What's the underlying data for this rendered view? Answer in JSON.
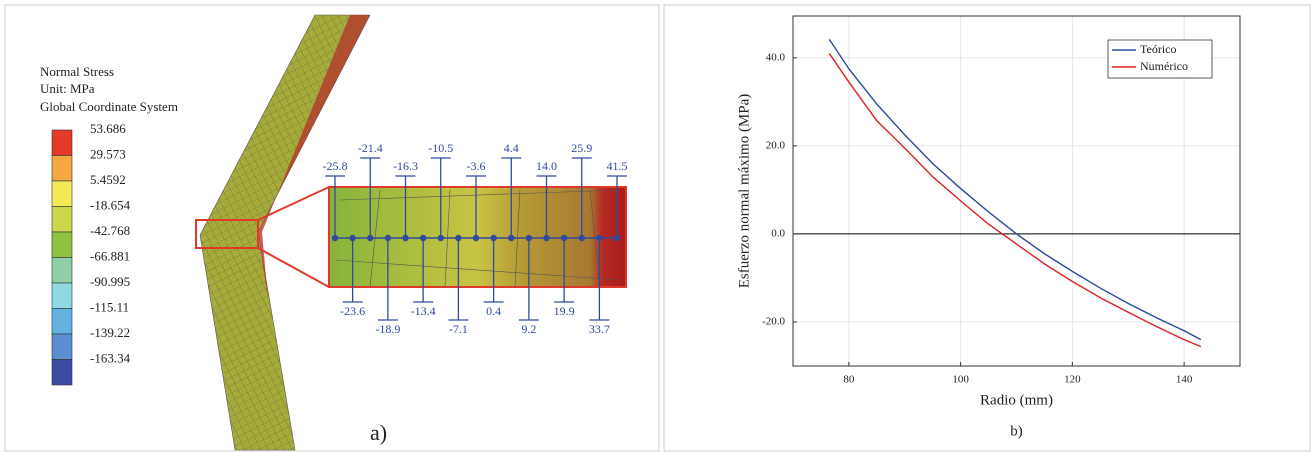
{
  "panel_a": {
    "legend_title": [
      "Normal Stress",
      "Unit: MPa",
      "Global Coordinate System"
    ],
    "legend": [
      {
        "label": "53.686",
        "color": "#e5392b"
      },
      {
        "label": "29.573",
        "color": "#f3a940"
      },
      {
        "label": "5.4592",
        "color": "#f3ea55"
      },
      {
        "label": "-18.654",
        "color": "#cbd84a"
      },
      {
        "label": "-42.768",
        "color": "#8fc23f"
      },
      {
        "label": "-66.881",
        "color": "#8fd0a6"
      },
      {
        "label": "-90.995",
        "color": "#92d8e3"
      },
      {
        "label": "-115.11",
        "color": "#62b3e2"
      },
      {
        "label": "-139.22",
        "color": "#5b8fd2"
      },
      {
        "label": "-163.34",
        "color": "#3a4da0"
      }
    ],
    "stress_labels": [
      "-25.8",
      "-23.6",
      "-21.4",
      "-18.9",
      "-16.3",
      "-13.4",
      "-10.5",
      "-7.1",
      "-3.6",
      "0.4",
      "4.4",
      "9.2",
      "14.0",
      "19.9",
      "25.9",
      "33.7",
      "41.5"
    ],
    "label": "a)"
  },
  "chart_data": {
    "type": "line",
    "x_label": "Radio (mm)",
    "y_label": "Esfuerzo normal máximo (MPa)",
    "annotation": "b)",
    "x": [
      76.5,
      80,
      85,
      90,
      95,
      100,
      105,
      110,
      115,
      120,
      125,
      130,
      135,
      140,
      143
    ],
    "series": [
      {
        "name": "Teórico",
        "color": "#2c4a9c",
        "values": [
          44.2,
          37.5,
          29.5,
          22.5,
          16,
          10.3,
          5,
          0,
          -4.5,
          -8.5,
          -12.3,
          -15.8,
          -19,
          -22,
          -24
        ]
      },
      {
        "name": "Numérico",
        "color": "#e0201f",
        "values": [
          41,
          34.5,
          25.7,
          19.5,
          13,
          7.5,
          2.2,
          -2.3,
          -6.8,
          -10.8,
          -14.5,
          -17.8,
          -21,
          -24,
          -25.6
        ]
      }
    ],
    "xlim": [
      70,
      150
    ],
    "ylim": [
      -30,
      49.5
    ],
    "xticks": [
      80,
      100,
      120,
      140
    ],
    "yticks": [
      {
        "value": -20,
        "label": "-20.0"
      },
      {
        "value": 0,
        "label": "0.0"
      },
      {
        "value": 20,
        "label": "20.0"
      },
      {
        "value": 40,
        "label": "40.0"
      }
    ],
    "grid": true,
    "legend": "upper right"
  }
}
